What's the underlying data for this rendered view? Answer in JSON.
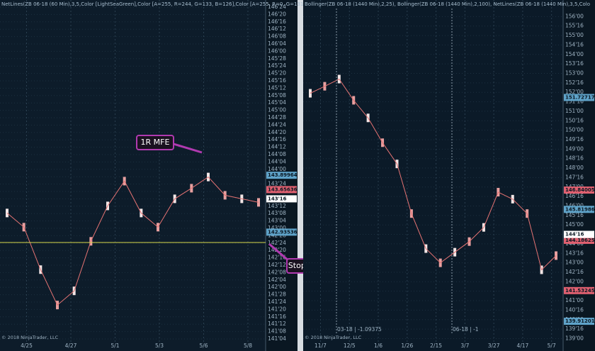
{
  "panels": [
    {
      "header": "NetLines(ZB 06-18 (60 Min),3,5,Color [LightSeaGreen],Color [A=255, R=244, G=133, B=126],Color [A=255, R=0, G=131",
      "copyright": "© 2018 NinjaTrader, LLC",
      "ylim": [
        141.125,
        146.75
      ],
      "ticks": [
        {
          "value": 146.75,
          "label": "146'24"
        },
        {
          "value": 146.625,
          "label": "146'20"
        },
        {
          "value": 146.5,
          "label": "146'16"
        },
        {
          "value": 146.375,
          "label": "146'12"
        },
        {
          "value": 146.25,
          "label": "146'08"
        },
        {
          "value": 146.125,
          "label": "146'04"
        },
        {
          "value": 146,
          "label": "146'00"
        },
        {
          "value": 145.875,
          "label": "145'28"
        },
        {
          "value": 145.75,
          "label": "145'24"
        },
        {
          "value": 145.625,
          "label": "145'20"
        },
        {
          "value": 145.5,
          "label": "145'16"
        },
        {
          "value": 145.375,
          "label": "145'12"
        },
        {
          "value": 145.25,
          "label": "145'08"
        },
        {
          "value": 145.125,
          "label": "145'04"
        },
        {
          "value": 145,
          "label": "145'00"
        },
        {
          "value": 144.875,
          "label": "144'28"
        },
        {
          "value": 144.75,
          "label": "144'24"
        },
        {
          "value": 144.625,
          "label": "144'20"
        },
        {
          "value": 144.5,
          "label": "144'16"
        },
        {
          "value": 144.375,
          "label": "144'12"
        },
        {
          "value": 144.25,
          "label": "144'08"
        },
        {
          "value": 144.125,
          "label": "144'04"
        },
        {
          "value": 144,
          "label": "144'00"
        },
        {
          "value": 143.875,
          "label": "143'28"
        },
        {
          "value": 143.75,
          "label": "143'24"
        },
        {
          "value": 143.625,
          "label": "143'20"
        },
        {
          "value": 143.5,
          "label": "143'16"
        },
        {
          "value": 143.375,
          "label": "143'12"
        },
        {
          "value": 143.25,
          "label": "143'08"
        },
        {
          "value": 143.125,
          "label": "143'04"
        },
        {
          "value": 143,
          "label": "143'00"
        },
        {
          "value": 142.875,
          "label": "142'28"
        },
        {
          "value": 142.75,
          "label": "142'24"
        },
        {
          "value": 142.625,
          "label": "142'20"
        },
        {
          "value": 142.5,
          "label": "142'16"
        },
        {
          "value": 142.375,
          "label": "142'12"
        },
        {
          "value": 142.25,
          "label": "142'08"
        },
        {
          "value": 142.125,
          "label": "142'04"
        },
        {
          "value": 142,
          "label": "142'00"
        },
        {
          "value": 141.875,
          "label": "141'28"
        },
        {
          "value": 141.75,
          "label": "141'24"
        },
        {
          "value": 141.625,
          "label": "141'20"
        },
        {
          "value": 141.5,
          "label": "141'16"
        },
        {
          "value": 141.375,
          "label": "141'12"
        },
        {
          "value": 141.25,
          "label": "141'08"
        },
        {
          "value": 141.125,
          "label": "141'04"
        }
      ],
      "markers": [
        {
          "value": 143.89964,
          "color": "#5fa3c9"
        },
        {
          "value": 143.65636,
          "color": "#e06070"
        },
        {
          "value": {
            "value": 143.5,
            "label": "143'16"
          },
          "color": "#ffffff"
        },
        {
          "value": 142.93536,
          "color": "#5fa3c9"
        }
      ],
      "dates": [
        "4/25",
        "4/27",
        "5/1",
        "5/3",
        "5/6",
        "5/8"
      ],
      "closes": [
        143.26,
        143.02,
        142.3,
        141.7,
        141.94,
        142.78,
        143.38,
        143.8,
        143.26,
        143.02,
        143.5,
        143.68,
        143.87,
        143.56,
        143.5,
        143.44
      ],
      "annotations": [
        "1R MFE",
        "Stop to break/even."
      ]
    },
    {
      "header": "Bollinger(ZB 06-18 (1440 Min),2,25), Bollinger(ZB 06-18 (1440 Min),2,100), NetLines(ZB 06-18 (1440 Min),3,5,Colo",
      "copyright": "© 2018 NinjaTrader, LLC",
      "ylim": [
        138.98,
        156.5
      ],
      "ticks": [
        {
          "value": 156,
          "label": "156'00"
        },
        {
          "value": 155.5,
          "label": "155'16"
        },
        {
          "value": 155,
          "label": "155'00"
        },
        {
          "value": 154.5,
          "label": "154'16"
        },
        {
          "value": 154,
          "label": "154'00"
        },
        {
          "value": 153.5,
          "label": "153'16"
        },
        {
          "value": 153,
          "label": "153'00"
        },
        {
          "value": 152.5,
          "label": "152'16"
        },
        {
          "value": 152,
          "label": "152'00"
        },
        {
          "value": 151.5,
          "label": "151'16"
        },
        {
          "value": 151,
          "label": "151'00"
        },
        {
          "value": 150.5,
          "label": "150'16"
        },
        {
          "value": 150,
          "label": "150'00"
        },
        {
          "value": 149.5,
          "label": "149'16"
        },
        {
          "value": 149,
          "label": "149'00"
        },
        {
          "value": 148.5,
          "label": "148'16"
        },
        {
          "value": 148,
          "label": "148'00"
        },
        {
          "value": 147.5,
          "label": "147'16"
        },
        {
          "value": 147,
          "label": "147'00"
        },
        {
          "value": 146.5,
          "label": "146'16"
        },
        {
          "value": 146,
          "label": "146'00"
        },
        {
          "value": 145.5,
          "label": "145'16"
        },
        {
          "value": 145,
          "label": "145'00"
        },
        {
          "value": 144.5,
          "label": "144'16"
        },
        {
          "value": 144,
          "label": "144'00"
        },
        {
          "value": 143.5,
          "label": "143'16"
        },
        {
          "value": 143,
          "label": "143'00"
        },
        {
          "value": 142.5,
          "label": "142'16"
        },
        {
          "value": 142,
          "label": "142'00"
        },
        {
          "value": 141.5,
          "label": "141'16"
        },
        {
          "value": 141,
          "label": "141'00"
        },
        {
          "value": 140.5,
          "label": "140'16"
        },
        {
          "value": 140,
          "label": "140'00"
        },
        {
          "value": 139.5,
          "label": "139'16"
        },
        {
          "value": 139,
          "label": "139'00"
        }
      ],
      "markers": [
        {
          "value": 151.72717,
          "color": "#5fa3c9"
        },
        {
          "value": 146.84005,
          "color": "#e06070"
        },
        {
          "value": 145.81986,
          "color": "#5fa3c9"
        },
        {
          "value": 144.18625,
          "color": "#e06070"
        },
        {
          "value": {
            "value": 144.5,
            "label": "144'16"
          },
          "color": "#ffffff"
        },
        {
          "value": 141.53245,
          "color": "#e06070"
        },
        {
          "value": 139.91201,
          "color": "#5fa3c9"
        }
      ],
      "dates": [
        "11/7",
        "12/5",
        "1/6",
        "1/26",
        "2/15",
        "3/7",
        "3/27",
        "4/17",
        "5/7"
      ],
      "closes": [
        151.95,
        152.32,
        152.7,
        151.58,
        150.65,
        149.34,
        148.22,
        145.6,
        143.75,
        143.0,
        143.56,
        144.12,
        144.87,
        146.73,
        146.36,
        145.6,
        142.63,
        143.38
      ],
      "rollovers": [
        "03-18 | -1.09375",
        "06-18 | -1"
      ]
    }
  ]
}
